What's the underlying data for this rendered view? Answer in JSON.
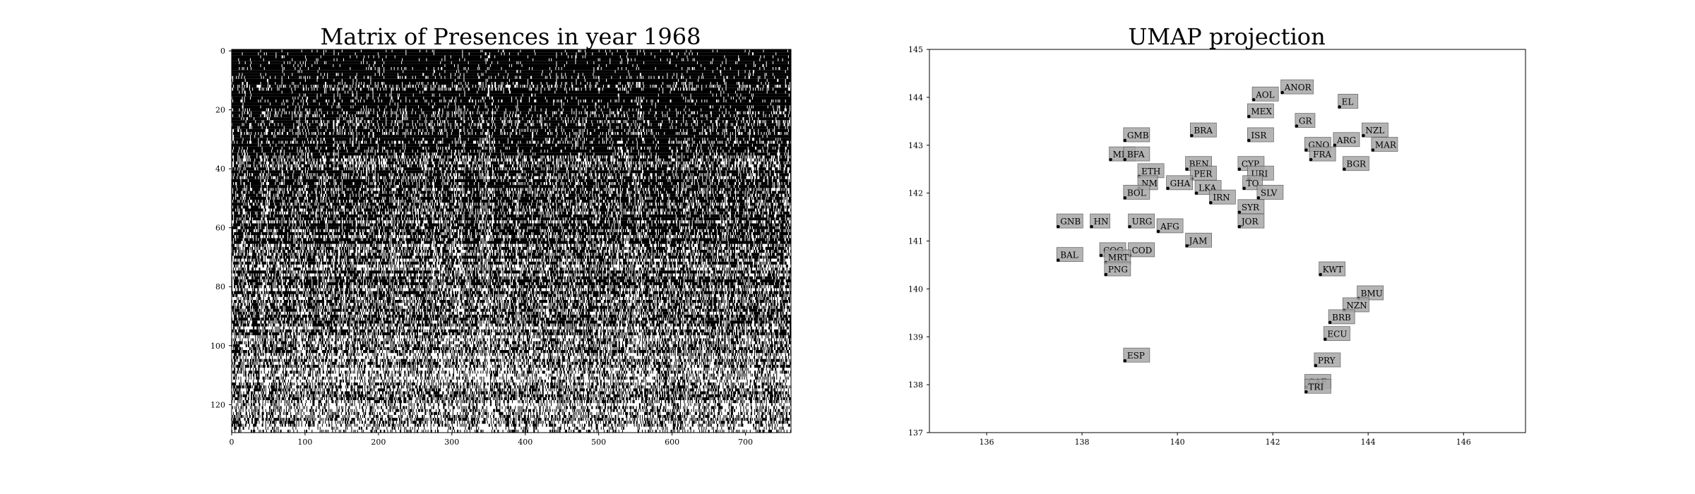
{
  "chart_data": [
    {
      "type": "heatmap",
      "title": "Matrix of Presences in year 1968",
      "xlabel": "",
      "ylabel": "",
      "xlim": [
        0,
        762
      ],
      "ylim": [
        130,
        0
      ],
      "xticks": [
        0,
        100,
        200,
        300,
        400,
        500,
        600,
        700
      ],
      "yticks": [
        0,
        20,
        40,
        60,
        80,
        100,
        120
      ],
      "colors": {
        "present": "#000000",
        "absent": "#ffffff"
      },
      "description_of_values": "binary presence matrix (black = present); density of presence decreases with row index"
    },
    {
      "type": "scatter",
      "title": "UMAP projection",
      "xlabel": "",
      "ylabel": "",
      "xlim": [
        134.8,
        147.3
      ],
      "ylim": [
        137,
        145
      ],
      "xticks": [
        136,
        138,
        140,
        142,
        144,
        146
      ],
      "yticks": [
        137,
        138,
        139,
        140,
        141,
        142,
        143,
        144,
        145
      ],
      "label_box_color": "#a8a8a8",
      "points": [
        {
          "label": "ANOR",
          "x": 142.2,
          "y": 144.1
        },
        {
          "label": "AOL",
          "x": 141.6,
          "y": 143.95
        },
        {
          "label": "EL",
          "x": 143.4,
          "y": 143.8
        },
        {
          "label": "MEX",
          "x": 141.5,
          "y": 143.6
        },
        {
          "label": "GR",
          "x": 142.5,
          "y": 143.4
        },
        {
          "label": "NZL",
          "x": 143.9,
          "y": 143.2
        },
        {
          "label": "BRA",
          "x": 140.3,
          "y": 143.2
        },
        {
          "label": "ISR",
          "x": 141.5,
          "y": 143.1
        },
        {
          "label": "GMB",
          "x": 138.9,
          "y": 143.1
        },
        {
          "label": "ARG",
          "x": 143.3,
          "y": 143.0
        },
        {
          "label": "MAR",
          "x": 144.1,
          "y": 142.9
        },
        {
          "label": "GNQ",
          "x": 142.7,
          "y": 142.9
        },
        {
          "label": "FRA",
          "x": 142.8,
          "y": 142.7
        },
        {
          "label": "BGR",
          "x": 143.5,
          "y": 142.5
        },
        {
          "label": "MLI",
          "x": 138.6,
          "y": 142.7
        },
        {
          "label": "BFA",
          "x": 138.9,
          "y": 142.7
        },
        {
          "label": "BEN",
          "x": 140.2,
          "y": 142.5
        },
        {
          "label": "CYP",
          "x": 141.3,
          "y": 142.5
        },
        {
          "label": "ETH",
          "x": 139.2,
          "y": 142.35
        },
        {
          "label": "PER",
          "x": 140.3,
          "y": 142.3
        },
        {
          "label": "URI",
          "x": 141.5,
          "y": 142.3
        },
        {
          "label": "TO",
          "x": 141.4,
          "y": 142.1
        },
        {
          "label": "GHA",
          "x": 139.8,
          "y": 142.1
        },
        {
          "label": "LKA",
          "x": 140.4,
          "y": 142.0
        },
        {
          "label": "NM",
          "x": 139.2,
          "y": 142.1
        },
        {
          "label": "SLV",
          "x": 141.7,
          "y": 141.9
        },
        {
          "label": "BOL",
          "x": 138.9,
          "y": 141.9
        },
        {
          "label": "IRN",
          "x": 140.7,
          "y": 141.8
        },
        {
          "label": "SYR",
          "x": 141.3,
          "y": 141.6
        },
        {
          "label": "GNB",
          "x": 137.5,
          "y": 141.3
        },
        {
          "label": "HN",
          "x": 138.2,
          "y": 141.3
        },
        {
          "label": "URG",
          "x": 139.0,
          "y": 141.3
        },
        {
          "label": "AFG",
          "x": 139.6,
          "y": 141.2
        },
        {
          "label": "JOR",
          "x": 141.3,
          "y": 141.3
        },
        {
          "label": "JAM",
          "x": 140.2,
          "y": 140.9
        },
        {
          "label": "COG",
          "x": 138.4,
          "y": 140.7
        },
        {
          "label": "COD",
          "x": 139.0,
          "y": 140.7
        },
        {
          "label": "MRT",
          "x": 138.5,
          "y": 140.55
        },
        {
          "label": "BAL",
          "x": 137.5,
          "y": 140.6
        },
        {
          "label": "PNG",
          "x": 138.5,
          "y": 140.3
        },
        {
          "label": "KWT",
          "x": 143.0,
          "y": 140.3
        },
        {
          "label": "BMU",
          "x": 143.8,
          "y": 139.8
        },
        {
          "label": "NZN",
          "x": 143.5,
          "y": 139.55
        },
        {
          "label": "BRB",
          "x": 143.2,
          "y": 139.3
        },
        {
          "label": "ECU",
          "x": 143.1,
          "y": 138.95
        },
        {
          "label": "ESP",
          "x": 138.9,
          "y": 138.5
        },
        {
          "label": "PRY",
          "x": 142.9,
          "y": 138.4
        },
        {
          "label": "CAF",
          "x": 142.7,
          "y": 137.95
        },
        {
          "label": "TRI",
          "x": 142.7,
          "y": 137.85
        }
      ]
    }
  ]
}
